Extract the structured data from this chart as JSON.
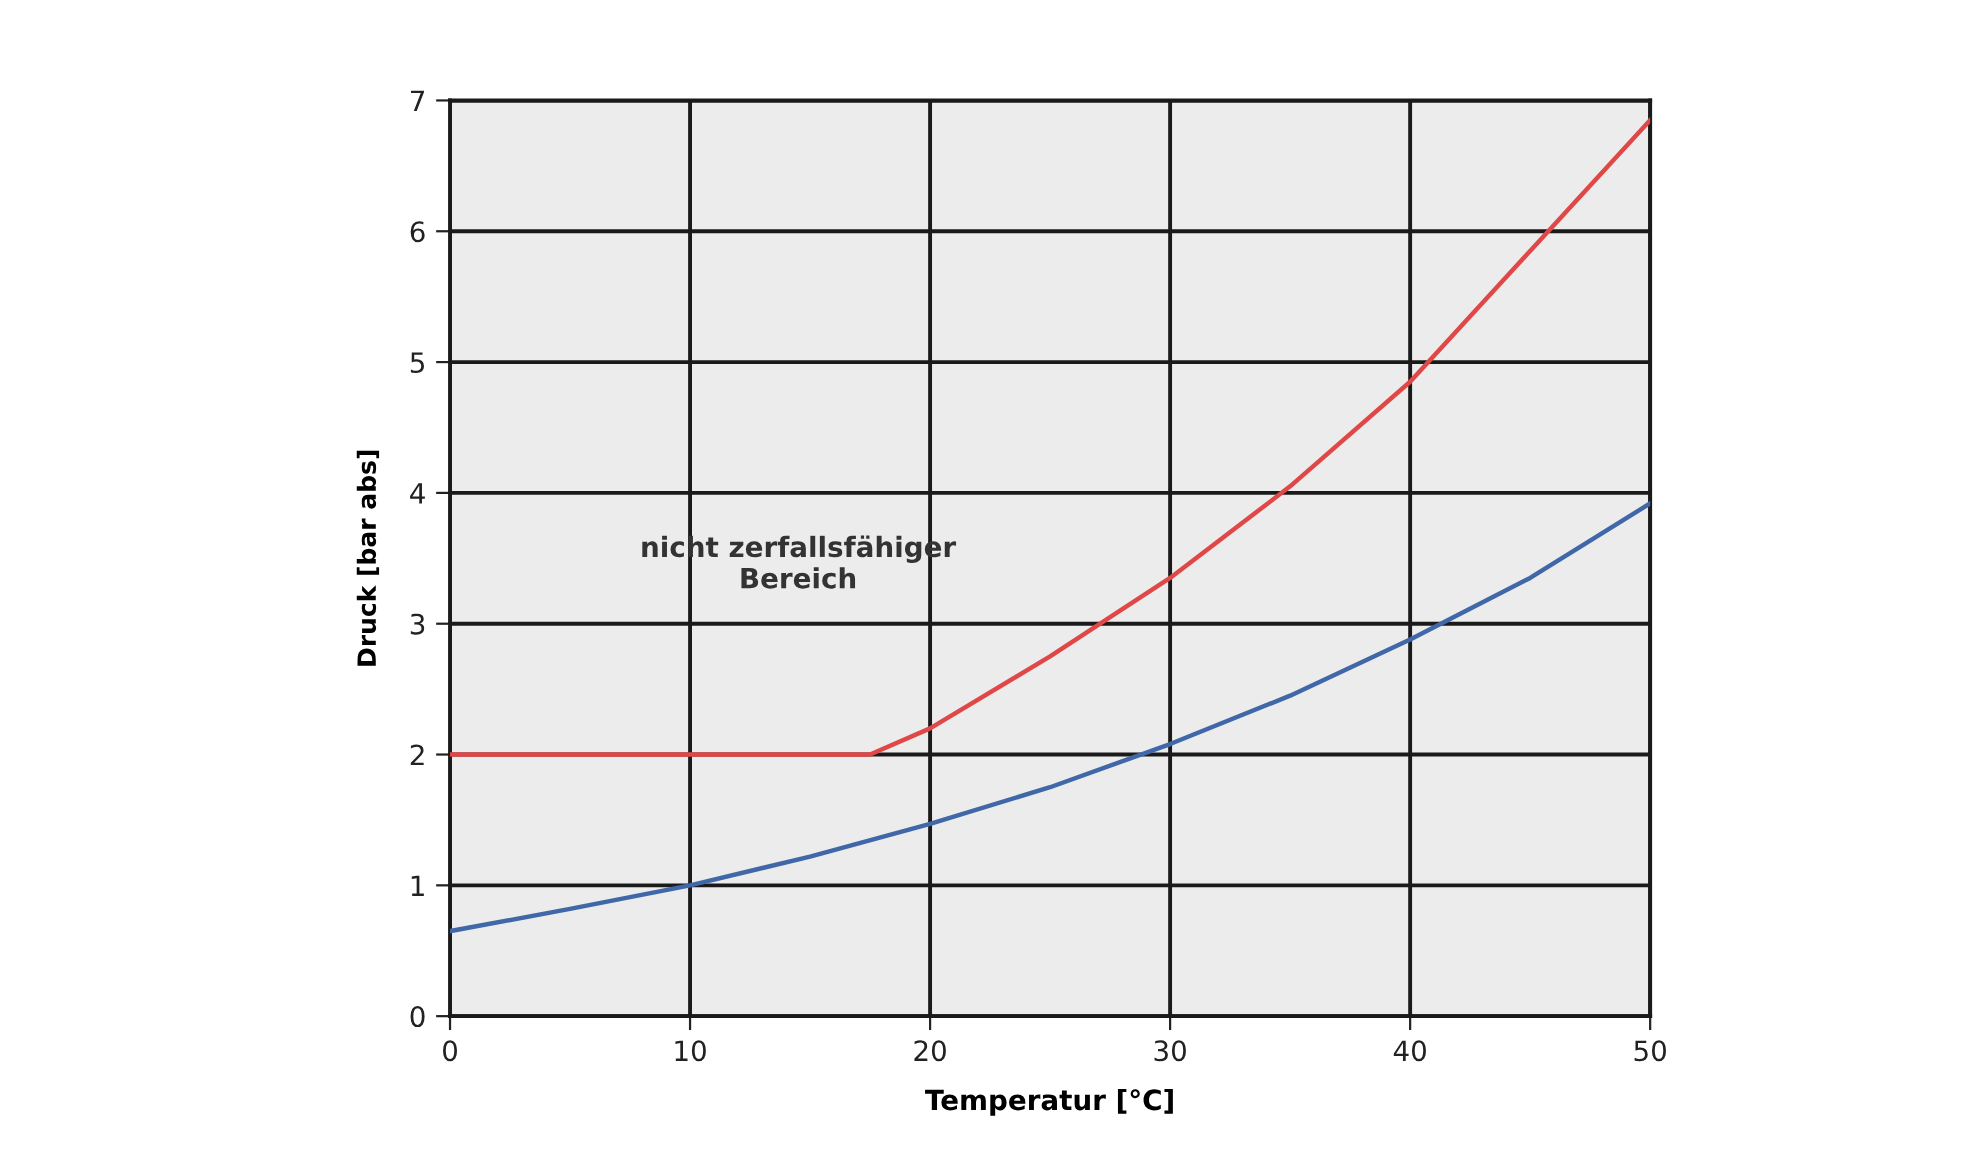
{
  "chart_data": {
    "type": "line",
    "xlabel": "Temperatur [°C]",
    "ylabel": "Druck [bar abs]",
    "series": [
      {
        "color": "#e04848",
        "x": [
          0,
          5,
          10,
          15,
          17.5,
          20,
          25,
          30,
          35,
          40,
          45,
          50
        ],
        "values": [
          2,
          2,
          2,
          2,
          2,
          2.2,
          2.75,
          3.35,
          4.05,
          4.85,
          5.85,
          6.85
        ]
      },
      {
        "color": "#4068a8",
        "x": [
          0,
          5,
          10,
          15,
          20,
          25,
          30,
          35,
          40,
          45,
          50
        ],
        "values": [
          0.65,
          0.82,
          1.0,
          1.22,
          1.47,
          1.75,
          2.08,
          2.45,
          2.88,
          3.35,
          3.92
        ]
      }
    ],
    "annotations": [
      "nicht zerfallsfähiger\nBereich"
    ],
    "xlim": [
      0,
      50
    ],
    "ylim": [
      0,
      7
    ],
    "xticks": [
      0,
      10,
      20,
      30,
      40,
      50
    ],
    "yticks": [
      0,
      1,
      2,
      3,
      4,
      5,
      6,
      7
    ],
    "grid": true,
    "legend": false,
    "marker": "none",
    "line_style": "solid"
  }
}
